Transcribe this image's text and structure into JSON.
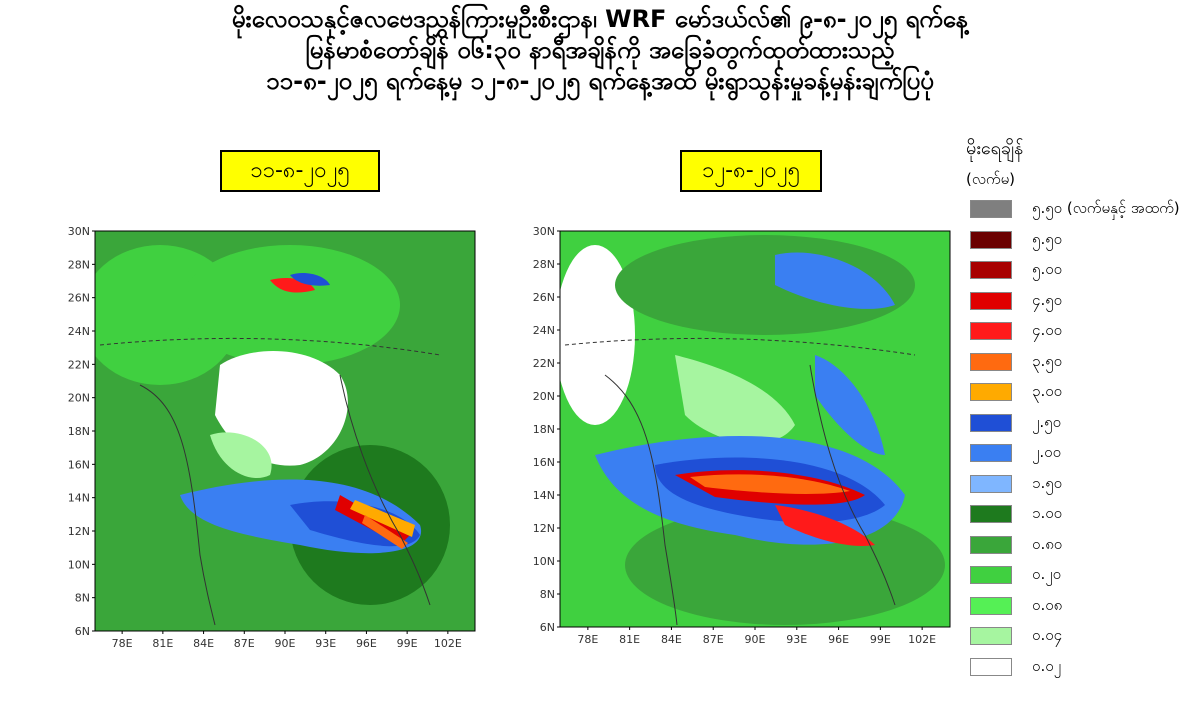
{
  "title": {
    "line1": "မိုးလေဝသနှင့်ဇလဗေဒညွှန်ကြားမှုဦးစီးဌာန၊ WRF မော်ဒယ်လ်၏ ၉-၈-၂၀၂၅ ရက်နေ့",
    "line2": "မြန်မာစံတော်ချိန် ၀၆:၃၀ နာရီအချိန်ကို အခြေခံတွက်ထုတ်ထားသည့်",
    "line3": "၁၁-၈-၂၀၂၅ ရက်နေ့မှ ၁၂-၈-၂၀၂၅ ရက်နေ့အထိ မိုးရွာသွန်းမှုခန့်မှန်းချက်ပြပုံ"
  },
  "maps": [
    {
      "date_label": "၁၁-၈-၂၀၂၅"
    },
    {
      "date_label": "၁၂-၈-၂၀၂၅"
    }
  ],
  "axes": {
    "y_ticks": [
      "30N",
      "28N",
      "26N",
      "24N",
      "22N",
      "20N",
      "18N",
      "16N",
      "14N",
      "12N",
      "10N",
      "8N",
      "6N"
    ],
    "x_ticks": [
      "78E",
      "81E",
      "84E",
      "87E",
      "90E",
      "93E",
      "96E",
      "99E",
      "102E"
    ],
    "lon_range": [
      76,
      104
    ],
    "lat_range": [
      6,
      30
    ]
  },
  "legend": {
    "title": "မိုးရေချိန်",
    "unit": "(လက်မ)",
    "items": [
      {
        "label": "၅.၅၀ (လက်မနှင့် အထက်)",
        "color": "#7f7f7f"
      },
      {
        "label": "၅.၅၀",
        "color": "#6b0000"
      },
      {
        "label": "၅.၀၀",
        "color": "#a80000"
      },
      {
        "label": "၄.၅၀",
        "color": "#e00000"
      },
      {
        "label": "၄.၀၀",
        "color": "#ff1a1a"
      },
      {
        "label": "၃.၅၀",
        "color": "#ff6a10"
      },
      {
        "label": "၃.၀၀",
        "color": "#ffaa00"
      },
      {
        "label": "၂.၅၀",
        "color": "#1f4fd6"
      },
      {
        "label": "၂.၀၀",
        "color": "#3a7ff2"
      },
      {
        "label": "၁.၅၀",
        "color": "#7fb6ff"
      },
      {
        "label": "၁.၀၀",
        "color": "#1e7a1e"
      },
      {
        "label": "၀.၈၀",
        "color": "#3aa63a"
      },
      {
        "label": "၀.၂၀",
        "color": "#40d040"
      },
      {
        "label": "၀.၀၈",
        "color": "#55f055"
      },
      {
        "label": "၀.၀၄",
        "color": "#a6f5a0"
      },
      {
        "label": "၀.၀၂",
        "color": "#ffffff"
      }
    ]
  }
}
